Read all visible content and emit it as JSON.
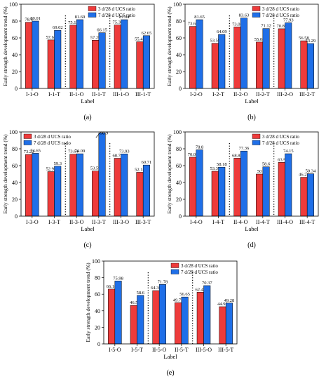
{
  "legend_labels": [
    "3 d/28 d UCS ratio",
    "7 d/28 d UCS ratio"
  ],
  "colors": {
    "series_3d": "#ee3b3b",
    "series_7d": "#1f6fe8",
    "axis": "#000000",
    "separator": "#000000"
  },
  "chart_data": [
    {
      "type": "bar",
      "panel_label": "(a)",
      "xlabel": "Label",
      "ylabel": "Early strength development trend (%)",
      "ylim": [
        0,
        100
      ],
      "yticks": [
        0,
        20,
        40,
        60,
        80,
        100
      ],
      "legend": "top-right",
      "grid": false,
      "categories": [
        "I-1-O",
        "I-1-T",
        "II-1-O",
        "II-1-T",
        "III-1-O",
        "III-1-T"
      ],
      "series": [
        {
          "name": "3 d/28 d UCS ratio",
          "values": [
            78.6,
            57.61,
            75.12,
            57.29,
            75.36,
            55.42
          ],
          "labels": [
            "78.6",
            "57.61",
            "75.12",
            "57.29",
            "75.36",
            "55.42"
          ]
        },
        {
          "name": "7 d/28 d UCS ratio",
          "values": [
            80.01,
            69.02,
            81.69,
            66.15,
            81.64,
            62.65
          ],
          "labels": [
            "80.01",
            "69.02",
            "81.69",
            "66.15",
            "81.64",
            "62.65"
          ]
        }
      ]
    },
    {
      "type": "bar",
      "panel_label": "(b)",
      "xlabel": "Label",
      "ylabel": "Early strength development trend (%)",
      "ylim": [
        0,
        100
      ],
      "yticks": [
        0,
        20,
        40,
        60,
        80,
        100
      ],
      "legend": "top-right",
      "grid": false,
      "categories": [
        "I-2-O",
        "I-2-T",
        "II-2-O",
        "II-2-T",
        "III-2-O",
        "III-2-T"
      ],
      "series": [
        {
          "name": "3 d/28 d UCS ratio",
          "values": [
            73.65,
            53.59,
            73.01,
            55.08,
            70.89,
            56.58
          ],
          "labels": [
            "73.65",
            "53.59",
            "73.01",
            "55.08",
            "70.89",
            "56.58"
          ]
        },
        {
          "name": "7 d/28 d UCS ratio",
          "values": [
            81.65,
            64.09,
            83.63,
            71.12,
            77.93,
            53.29
          ],
          "labels": [
            "81.65",
            "64.09",
            "83.63",
            "71.12",
            "77.93",
            "53.29"
          ]
        }
      ]
    },
    {
      "type": "bar",
      "panel_label": "(c)",
      "xlabel": "Label",
      "ylabel": "Early strength development trend (%)",
      "ylim": [
        0,
        100
      ],
      "yticks": [
        0,
        20,
        40,
        60,
        80,
        100
      ],
      "legend": "top-left",
      "grid": false,
      "categories": [
        "I-3-O",
        "I-3-T",
        "II-3-O",
        "II-3-T",
        "III-3-O",
        "III-3-T"
      ],
      "series": [
        {
          "name": "3 d/28 d UCS ratio",
          "values": [
            73.22,
            52.91,
            73.64,
            53.59,
            68.75,
            52.14
          ],
          "labels": [
            "73.22",
            "52.91",
            "73.64",
            "53.59",
            "68.75",
            "52.14"
          ]
        },
        {
          "name": "7 d/28 d UCS ratio",
          "values": [
            74.65,
            59.3,
            74.09,
            98.9,
            73.93,
            60.71
          ],
          "labels": [
            "74.65",
            "59.3",
            "74.09",
            "98.9",
            "73.93",
            "60.71"
          ]
        }
      ]
    },
    {
      "type": "bar",
      "panel_label": "(d)",
      "xlabel": "Label",
      "ylabel": "Early strength development trend (%)",
      "ylim": [
        0,
        100
      ],
      "yticks": [
        0,
        20,
        40,
        60,
        80,
        100
      ],
      "legend": "top-right",
      "grid": false,
      "categories": [
        "I-4-O",
        "I-4-T",
        "II-4-O",
        "II-4-T",
        "III-4-O",
        "III-4-T"
      ],
      "series": [
        {
          "name": "3 d/28 d UCS ratio",
          "values": [
            70.05,
            53.37,
            68.87,
            50,
            63.9,
            46.21
          ],
          "labels": [
            "70.05",
            "53.37",
            "68.87",
            "50",
            "63.9",
            "46.21"
          ]
        },
        {
          "name": "7 d/28 d UCS ratio",
          "values": [
            78.8,
            58.18,
            77.36,
            58.6,
            74.15,
            50.34
          ],
          "labels": [
            "78.8",
            "58.18",
            "77.36",
            "58.6",
            "74.15",
            "50.34"
          ]
        }
      ]
    },
    {
      "type": "bar",
      "panel_label": "(e)",
      "xlabel": "Label",
      "ylabel": "Early strength development trend (%)",
      "ylim": [
        0,
        100
      ],
      "yticks": [
        0,
        20,
        40,
        60,
        80,
        100
      ],
      "legend": "top-right",
      "grid": false,
      "categories": [
        "I-5-O",
        "I-5-T",
        "II-5-O",
        "II-5-T",
        "III-5-O",
        "III-5-T"
      ],
      "series": [
        {
          "name": "3 d/28 d UCS ratio",
          "values": [
            66.18,
            46.5,
            64.36,
            49.71,
            62.43,
            44.93
          ],
          "labels": [
            "66.18",
            "46.5",
            "64.36",
            "49.71",
            "62.43",
            "44.93"
          ]
        },
        {
          "name": "7 d/28 d UCS ratio",
          "values": [
            75.98,
            58.6,
            71.78,
            56.65,
            70.37,
            49.28
          ],
          "labels": [
            "75.98",
            "58.6",
            "71.78",
            "56.65",
            "70.37",
            "49.28"
          ]
        }
      ]
    }
  ]
}
